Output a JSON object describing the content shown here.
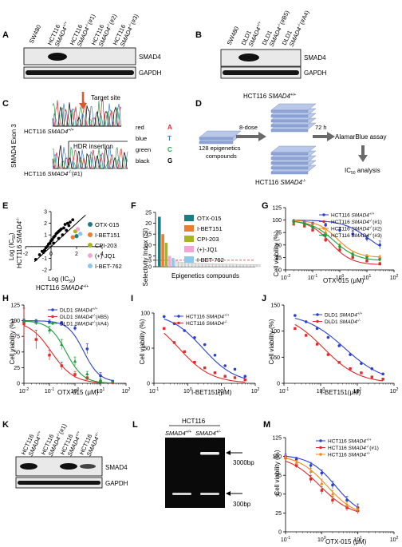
{
  "panel_letters": [
    "A",
    "B",
    "C",
    "D",
    "E",
    "F",
    "G",
    "H",
    "I",
    "J",
    "K",
    "L",
    "M"
  ],
  "panel_A": {
    "lanes": [
      "SW480",
      "HCT116 SMAD4+/+",
      "HCT116 SMAD4-/- (#1)",
      "HCT116 SMAD4-/- (#2)",
      "HCT116 SMAD4-/- (#3)"
    ],
    "bands": [
      "SMAD4",
      "GAPDH"
    ]
  },
  "panel_B": {
    "lanes": [
      "SW480",
      "DLD1 SMAD4+/+",
      "DLD1 SMAD4-/- (#B5)",
      "DLD1 SMAD4-/- (#A4)"
    ],
    "bands": [
      "SMAD4",
      "GAPDH"
    ]
  },
  "panel_C": {
    "y_label": "SMAD4 Exon 3",
    "target_site": "Target site",
    "hdr": "HDR insertion",
    "trace1": "HCT116 SMAD4+/+",
    "trace2": "HCT116 SMAD4-/-(#1)",
    "legend": [
      {
        "name": "red",
        "base": "A",
        "color": "#e8202a"
      },
      {
        "name": "blue",
        "base": "T",
        "color": "#3a7fd5"
      },
      {
        "name": "green",
        "base": "C",
        "color": "#2aa24a"
      },
      {
        "name": "black",
        "base": "G",
        "color": "#000000"
      }
    ]
  },
  "panel_D": {
    "top_stack": "HCT116 SMAD4+/+",
    "bottom_stack": "HCT116 SMAD4-/-",
    "library": "128 epigenetics compounds",
    "dose": "8-dose",
    "time": "72 h",
    "assay": "AlamarBlue assay",
    "analysis": "IC50 analysis"
  },
  "panel_E": {
    "xlabel": "Log (IC50)",
    "xlabel2": "HCT116 SMAD4+/+",
    "ylabel": "Log (IC50)",
    "ylabel2": "HCT116 SMAD4-/-",
    "legend": [
      {
        "name": "OTX-015",
        "color": "#1b7c83"
      },
      {
        "name": "I-BET151",
        "color": "#f07c29"
      },
      {
        "name": "CPI-203",
        "color": "#a8b51f"
      },
      {
        "name": "(+)-JQ1",
        "color": "#f4a6d6"
      },
      {
        "name": "I-BET-762",
        "color": "#8cc8ee"
      }
    ]
  },
  "panel_F": {
    "ylabel": "Selectivity Index (SI)",
    "xlabel": "Epigenetics compounds",
    "legend": [
      {
        "name": "OTX-015",
        "color": "#1b7c83"
      },
      {
        "name": "I-BET151",
        "color": "#f07c29"
      },
      {
        "name": "CPI-203",
        "color": "#a8b51f"
      },
      {
        "name": "(+)-JQ1",
        "color": "#f4a6d6"
      },
      {
        "name": "I-BET-762",
        "color": "#8cc8ee"
      }
    ]
  },
  "panel_G": {
    "xlabel": "OTX-015 (μM)",
    "ylabel": "Cell viability (%)",
    "legend": [
      "HCT116 SMAD4+/+",
      "HCT116 SMAD4-/-(#1)",
      "HCT116 SMAD4-/-(#2)",
      "HCT116 SMAD4-/-(#3)"
    ]
  },
  "panel_H": {
    "xlabel": "OTX-015 (μM)",
    "ylabel": "Cell viability (%)",
    "legend": [
      "DLD1 SMAD4+/+",
      "DLD1 SMAD4-/-(#B5)",
      "DLD1 SMAD4-/-(#A4)"
    ]
  },
  "panel_I": {
    "xlabel": "I-BET151(μM)",
    "ylabel": "Cell viability (%)",
    "legend": [
      "HCT116 SMAD4+/+",
      "HCT116 SMAD4-/-"
    ]
  },
  "panel_J": {
    "xlabel": "I-BET151(μM)",
    "ylabel": "Cell viability (%)",
    "legend": [
      "DLD1 SMAD4+/+",
      "DLD1 SMAD4-/-"
    ]
  },
  "panel_K": {
    "lanes": [
      "HCT116 SMAD4+/+",
      "HCT116 SMAD4-/-(#1)",
      "HCT116 SMAD4+/+",
      "HCT116 SMAD4+/-"
    ],
    "bands": [
      "SMAD4",
      "GAPDH"
    ]
  },
  "panel_L": {
    "title": "HCT116",
    "lanes": [
      "SMAD4+/+",
      "SMAD4+/-"
    ],
    "sizes": [
      "3000bp",
      "300bp"
    ]
  },
  "panel_M": {
    "xlabel": "OTX-015 (μM)",
    "ylabel": "Cell viability (%)",
    "legend": [
      "HCT116 SMAD4+/+",
      "HCT116 SMAD4-/-(#1)",
      "HCT116 SMAD4+/-"
    ]
  },
  "chart_data": [
    {
      "panel": "E",
      "type": "scatter",
      "xlabel": "Log (IC50) HCT116 SMAD4+/+",
      "ylabel": "Log (IC50) HCT116 SMAD4-/-",
      "xlim": [
        -2,
        4
      ],
      "ylim": [
        -2,
        3
      ],
      "series": [
        {
          "values_xy": [
            [
              -1.2,
              -1.1
            ],
            [
              -0.9,
              -0.7
            ],
            [
              -0.7,
              -0.4
            ],
            [
              -0.5,
              -0.3
            ],
            [
              -0.4,
              -0.1
            ],
            [
              -0.3,
              0.0
            ],
            [
              -0.2,
              0.2
            ],
            [
              -0.1,
              0.3
            ],
            [
              0.0,
              0.5
            ],
            [
              0.1,
              0.6
            ],
            [
              0.2,
              0.8
            ],
            [
              0.3,
              0.9
            ],
            [
              0.4,
              1.1
            ],
            [
              0.5,
              1.2
            ],
            [
              0.6,
              1.3
            ],
            [
              0.7,
              1.4
            ],
            [
              0.8,
              1.5
            ],
            [
              1.0,
              1.6
            ],
            [
              1.1,
              1.9
            ],
            [
              1.3,
              2.0
            ],
            [
              1.5,
              2.1
            ],
            [
              1.7,
              2.3
            ],
            [
              0.9,
              1.0
            ],
            [
              0.6,
              0.7
            ],
            [
              1.2,
              1.4
            ],
            [
              -0.6,
              -0.5
            ],
            [
              0.2,
              0.3
            ],
            [
              1.4,
              1.8
            ]
          ]
        },
        {
          "name": "OTX-015",
          "values_xy": [
            [
              2.0,
              0.9
            ]
          ]
        },
        {
          "name": "I-BET151",
          "values_xy": [
            [
              1.7,
              0.8
            ]
          ]
        },
        {
          "name": "CPI-203",
          "values_xy": [
            [
              1.9,
              1.3
            ]
          ]
        },
        {
          "name": "(+)-JQ1",
          "values_xy": [
            [
              2.1,
              1.5
            ]
          ]
        },
        {
          "name": "I-BET-762",
          "values_xy": [
            [
              2.3,
              1.1
            ]
          ]
        }
      ]
    },
    {
      "panel": "F",
      "type": "bar",
      "ylabel": "Selectivity Index (SI)",
      "xlabel": "Epigenetics compounds",
      "ylim": [
        0,
        25
      ],
      "threshold": 3,
      "series": [
        {
          "name": "OTX-015",
          "values": [
            23
          ]
        },
        {
          "name": "I-BET151",
          "values": [
            15
          ]
        },
        {
          "name": "CPI-203",
          "values": [
            11
          ]
        },
        {
          "name": "(+)-JQ1",
          "values": [
            5
          ]
        },
        {
          "name": "I-BET-762",
          "values": [
            4
          ]
        }
      ],
      "others": [
        2.6,
        2.2,
        2.0,
        1.9,
        1.8,
        1.7,
        1.6,
        1.6,
        1.5,
        1.5,
        1.4,
        1.4,
        1.3,
        1.3,
        1.3,
        1.2,
        1.2,
        1.2,
        1.1,
        1.1,
        1.1,
        1.0,
        1.0,
        1.0,
        1.0
      ]
    },
    {
      "panel": "G",
      "type": "line",
      "xscale": "log",
      "xlim": [
        0.01,
        100
      ],
      "ylim": [
        0,
        125
      ],
      "series": [
        {
          "name": "HCT116 SMAD4+/+",
          "color": "#2b3fd1",
          "ic50": 12,
          "top": 100,
          "bottom": 25,
          "hill": 0.9,
          "x": [
            0.02,
            0.05,
            0.1,
            0.3,
            1,
            3,
            10,
            30
          ],
          "values": [
            98,
            96,
            93,
            90,
            80,
            72,
            63,
            50
          ],
          "err": [
            3,
            3,
            3,
            4,
            5,
            6,
            6,
            8
          ]
        },
        {
          "name": "HCT116 SMAD4-/-(#1)",
          "color": "#e02b2b",
          "ic50": 0.45,
          "top": 100,
          "bottom": 10,
          "hill": 1.1,
          "x": [
            0.02,
            0.05,
            0.1,
            0.3,
            1,
            3,
            10,
            30
          ],
          "values": [
            92,
            88,
            80,
            60,
            40,
            25,
            18,
            12
          ],
          "err": [
            3,
            3,
            4,
            4,
            4,
            3,
            3,
            3
          ]
        },
        {
          "name": "HCT116 SMAD4-/-(#2)",
          "color": "#f08a1e",
          "ic50": 0.8,
          "top": 100,
          "bottom": 25,
          "hill": 1.2,
          "x": [
            0.02,
            0.05,
            0.1,
            0.3,
            1,
            3,
            10,
            30
          ],
          "values": [
            94,
            92,
            88,
            75,
            48,
            32,
            28,
            26
          ],
          "err": [
            3,
            3,
            4,
            5,
            5,
            4,
            3,
            3
          ]
        },
        {
          "name": "HCT116 SMAD4-/-(#3)",
          "color": "#1a9e3a",
          "ic50": 0.6,
          "top": 100,
          "bottom": 18,
          "hill": 1.0,
          "x": [
            0.02,
            0.05,
            0.1,
            0.3,
            1,
            3,
            10,
            30
          ],
          "values": [
            95,
            90,
            84,
            68,
            46,
            30,
            24,
            20
          ],
          "err": [
            3,
            3,
            3,
            4,
            5,
            4,
            3,
            3
          ]
        }
      ]
    },
    {
      "panel": "H",
      "type": "line",
      "xscale": "log",
      "xlim": [
        0.01,
        100
      ],
      "ylim": [
        0,
        125
      ],
      "series": [
        {
          "name": "DLD1 SMAD4+/+",
          "color": "#2b3fd1",
          "ic50": 2.2,
          "top": 100,
          "bottom": 2,
          "hill": 1.4,
          "x": [
            0.01,
            0.03,
            0.1,
            0.3,
            1,
            3,
            10,
            30
          ],
          "values": [
            100,
            99,
            98,
            96,
            88,
            55,
            12,
            3
          ],
          "err": [
            3,
            3,
            3,
            3,
            4,
            8,
            5,
            2
          ]
        },
        {
          "name": "DLD1 SMAD4-/-(#B5)",
          "color": "#e02b2b",
          "ic50": 0.12,
          "top": 100,
          "bottom": 0,
          "hill": 1.0,
          "x": [
            0.01,
            0.03,
            0.1,
            0.3,
            1,
            3,
            10,
            30
          ],
          "values": [
            95,
            70,
            45,
            28,
            14,
            8,
            3,
            1
          ],
          "err": [
            25,
            15,
            8,
            6,
            5,
            3,
            2,
            1
          ]
        },
        {
          "name": "DLD1 SMAD4-/-(#A4)",
          "color": "#1a9e3a",
          "ic50": 0.45,
          "top": 100,
          "bottom": 0,
          "hill": 1.3,
          "x": [
            0.01,
            0.03,
            0.1,
            0.3,
            1,
            3,
            10,
            30
          ],
          "values": [
            99,
            97,
            85,
            62,
            35,
            15,
            5,
            2
          ],
          "err": [
            4,
            4,
            6,
            8,
            7,
            4,
            2,
            1
          ]
        }
      ]
    },
    {
      "panel": "I",
      "type": "line",
      "xscale": "log",
      "xlim": [
        0.1,
        100
      ],
      "ylim": [
        0,
        100
      ],
      "series": [
        {
          "name": "HCT116 SMAD4+/+",
          "color": "#2b3fd1",
          "ic50": 2.8,
          "top": 100,
          "bottom": 0,
          "hill": 0.9,
          "x": [
            0.2,
            0.4,
            0.8,
            1.6,
            3.2,
            6.4,
            12.8,
            25,
            50
          ],
          "values": [
            95,
            85,
            75,
            65,
            55,
            40,
            25,
            20,
            10
          ]
        },
        {
          "name": "HCT116 SMAD4-/-",
          "color": "#e02b2b",
          "ic50": 0.55,
          "top": 100,
          "bottom": 0,
          "hill": 0.9,
          "x": [
            0.2,
            0.4,
            0.8,
            1.6,
            3.2,
            6.4,
            12.8,
            25,
            50
          ],
          "values": [
            78,
            58,
            45,
            30,
            22,
            15,
            10,
            8,
            5
          ]
        }
      ]
    },
    {
      "panel": "J",
      "type": "line",
      "xscale": "log",
      "xlim": [
        0.1,
        100
      ],
      "ylim": [
        0,
        150
      ],
      "series": [
        {
          "name": "DLD1 SMAD4+/+",
          "color": "#2b3fd1",
          "ic50": 4.5,
          "top": 135,
          "bottom": 0,
          "hill": 0.8,
          "x": [
            0.2,
            0.4,
            0.8,
            1.6,
            3.2,
            6.4,
            12.8,
            25,
            50
          ],
          "values": [
            130,
            118,
            105,
            88,
            72,
            55,
            38,
            28,
            18
          ]
        },
        {
          "name": "DLD1 SMAD4-/-",
          "color": "#e02b2b",
          "ic50": 1.2,
          "top": 135,
          "bottom": 0,
          "hill": 0.9,
          "x": [
            0.2,
            0.4,
            0.8,
            1.6,
            3.2,
            6.4,
            12.8,
            25,
            50
          ],
          "values": [
            105,
            92,
            75,
            55,
            40,
            28,
            20,
            12,
            8
          ]
        }
      ]
    },
    {
      "panel": "M",
      "type": "line",
      "xscale": "log",
      "xlim": [
        0.1,
        100
      ],
      "ylim": [
        0,
        125
      ],
      "series": [
        {
          "name": "HCT116 SMAD4+/+",
          "color": "#2b3fd1",
          "ic50": 2.4,
          "top": 102,
          "bottom": 20,
          "hill": 1.2,
          "x": [
            0.1,
            0.2,
            0.5,
            1,
            2,
            5,
            10
          ],
          "values": [
            100,
            96,
            88,
            78,
            62,
            42,
            32
          ],
          "err": [
            3,
            3,
            4,
            4,
            5,
            5,
            5
          ]
        },
        {
          "name": "HCT116 SMAD4-/-(#1)",
          "color": "#e02b2b",
          "ic50": 0.9,
          "top": 102,
          "bottom": 20,
          "hill": 1.0,
          "x": [
            0.1,
            0.2,
            0.5,
            1,
            2,
            5,
            10
          ],
          "values": [
            98,
            88,
            70,
            55,
            42,
            32,
            28
          ],
          "err": [
            3,
            3,
            5,
            5,
            5,
            4,
            4
          ]
        },
        {
          "name": "HCT116 SMAD4+/-",
          "color": "#f08a1e",
          "ic50": 1.4,
          "top": 102,
          "bottom": 20,
          "hill": 1.1,
          "x": [
            0.1,
            0.2,
            0.5,
            1,
            2,
            5,
            10
          ],
          "values": [
            99,
            92,
            80,
            64,
            50,
            36,
            30
          ],
          "err": [
            3,
            3,
            4,
            6,
            5,
            4,
            4
          ]
        }
      ]
    }
  ]
}
